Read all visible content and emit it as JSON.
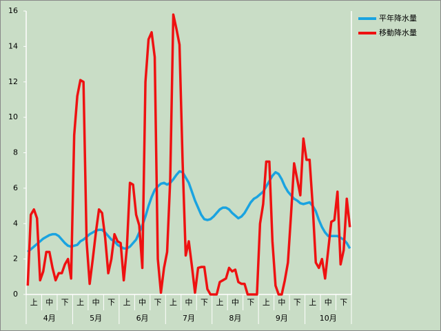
{
  "chart_data": {
    "type": "line",
    "categories": [
      null,
      null,
      "上",
      null,
      null,
      null,
      null,
      "中",
      null,
      null,
      null,
      null,
      "下",
      null,
      null,
      null,
      null,
      "上",
      null,
      null,
      null,
      null,
      "中",
      null,
      null,
      null,
      null,
      "下",
      null,
      null,
      null,
      null,
      "上",
      null,
      null,
      null,
      null,
      "中",
      null,
      null,
      null,
      null,
      "下",
      null,
      null,
      null,
      null,
      "上",
      null,
      null,
      null,
      null,
      "中",
      null,
      null,
      null,
      null,
      "下",
      null,
      null,
      null,
      null,
      "上",
      null,
      null,
      null,
      null,
      "中",
      null,
      null,
      null,
      null,
      "下",
      null,
      null,
      null,
      null,
      "上",
      null,
      null,
      null,
      null,
      "中",
      null,
      null,
      null,
      null,
      "下",
      null,
      null,
      null,
      null,
      "上",
      null,
      null,
      null,
      null,
      "中",
      null,
      null,
      null,
      null,
      "下",
      null,
      null
    ],
    "month_labels": [
      "4月",
      "5月",
      "6月",
      "7月",
      "8月",
      "9月",
      "10月"
    ],
    "series": [
      {
        "name": "平年降水量",
        "color": "#1aa3e0",
        "values": [
          2.4,
          2.55,
          2.7,
          2.85,
          3.0,
          3.15,
          3.25,
          3.35,
          3.4,
          3.4,
          3.3,
          3.1,
          2.9,
          2.75,
          2.7,
          2.75,
          2.8,
          3.0,
          3.1,
          3.25,
          3.4,
          3.5,
          3.6,
          3.65,
          3.65,
          3.5,
          3.3,
          3.1,
          3.0,
          2.8,
          2.7,
          2.6,
          2.6,
          2.7,
          2.9,
          3.1,
          3.5,
          3.9,
          4.4,
          5.0,
          5.5,
          5.9,
          6.1,
          6.25,
          6.3,
          6.2,
          6.3,
          6.5,
          6.75,
          6.95,
          6.9,
          6.6,
          6.3,
          5.8,
          5.3,
          4.9,
          4.5,
          4.25,
          4.2,
          4.25,
          4.4,
          4.6,
          4.8,
          4.9,
          4.9,
          4.8,
          4.6,
          4.45,
          4.3,
          4.4,
          4.6,
          4.9,
          5.2,
          5.4,
          5.5,
          5.65,
          5.8,
          6.1,
          6.4,
          6.7,
          6.9,
          6.8,
          6.5,
          6.1,
          5.8,
          5.6,
          5.4,
          5.3,
          5.15,
          5.1,
          5.15,
          5.2,
          5.0,
          4.7,
          4.2,
          3.8,
          3.5,
          3.3,
          3.3,
          3.3,
          3.3,
          3.2,
          3.1,
          2.9,
          2.6
        ]
      },
      {
        "name": "移動降水量",
        "color": "#ee1111",
        "values": [
          0.5,
          4.5,
          4.8,
          4.3,
          0.8,
          1.3,
          2.4,
          2.4,
          1.5,
          0.8,
          1.2,
          1.2,
          1.7,
          2.0,
          0.9,
          9,
          11.2,
          12.1,
          12,
          3,
          0.6,
          2.0,
          3.5,
          4.8,
          4.6,
          3.2,
          1.2,
          2.0,
          3.4,
          3.0,
          2.9,
          0.8,
          2.6,
          6.3,
          6.2,
          4.5,
          3.9,
          1.5,
          12,
          14.4,
          14.8,
          13.4,
          2,
          0.1,
          1.5,
          2.4,
          6.5,
          15.8,
          15,
          14.1,
          7.5,
          2.2,
          3.0,
          1.6,
          0.1,
          1.5,
          1.55,
          1.55,
          0.3,
          0,
          0,
          0,
          0.7,
          0.8,
          0.9,
          1.5,
          1.3,
          1.4,
          0.7,
          0.6,
          0.6,
          0,
          0,
          0,
          0,
          4.0,
          5.1,
          7.5,
          7.5,
          3,
          0.5,
          0,
          0,
          0.8,
          1.8,
          4.5,
          7.4,
          6.5,
          5.6,
          8.8,
          7.6,
          7.6,
          5,
          1.8,
          1.5,
          2.0,
          0.9,
          2.5,
          4.1,
          4.2,
          5.8,
          1.7,
          2.5,
          5.4,
          3.8
        ]
      }
    ],
    "ylim": [
      0,
      16
    ],
    "yticks": [
      0,
      2,
      4,
      6,
      8,
      10,
      12,
      14,
      16
    ],
    "legend": "top-right"
  }
}
